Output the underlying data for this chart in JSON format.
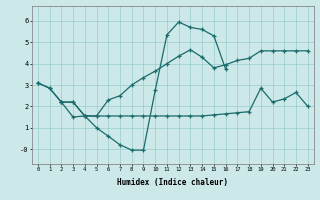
{
  "xlabel": "Humidex (Indice chaleur)",
  "bg_color": "#cce8e8",
  "grid_color": "#99cccc",
  "line_color": "#1a6b6b",
  "xlim": [
    -0.5,
    23.5
  ],
  "ylim": [
    -0.7,
    6.7
  ],
  "yticks": [
    0,
    1,
    2,
    3,
    4,
    5,
    6
  ],
  "ytick_labels": [
    "-0",
    "1",
    "2",
    "3",
    "4",
    "5",
    "6"
  ],
  "xticks": [
    0,
    1,
    2,
    3,
    4,
    5,
    6,
    7,
    8,
    9,
    10,
    11,
    12,
    13,
    14,
    15,
    16,
    17,
    18,
    19,
    20,
    21,
    22,
    23
  ],
  "line1_x": [
    0,
    1,
    2,
    3,
    4,
    5,
    6,
    7,
    8,
    9,
    10,
    11,
    12,
    13,
    14,
    15,
    16,
    17,
    18,
    19,
    20,
    21,
    22,
    23
  ],
  "line1_y": [
    3.1,
    2.85,
    2.2,
    2.2,
    1.55,
    1.55,
    2.3,
    2.5,
    3.0,
    3.35,
    3.65,
    4.0,
    4.35,
    4.65,
    4.3,
    3.8,
    3.95,
    4.15,
    4.25,
    4.6,
    4.6,
    4.6,
    4.6,
    4.6
  ],
  "line2_x": [
    0,
    1,
    2,
    3,
    4,
    5,
    6,
    7,
    8,
    9,
    10,
    11,
    12,
    13,
    14,
    15,
    16
  ],
  "line2_y": [
    3.1,
    2.85,
    2.2,
    1.5,
    1.55,
    1.0,
    0.6,
    0.2,
    -0.05,
    -0.05,
    2.75,
    5.35,
    5.95,
    5.7,
    5.6,
    5.3,
    3.75
  ],
  "line3_x": [
    2,
    3,
    4,
    5,
    6,
    7,
    8,
    9,
    10,
    11,
    12,
    13,
    14,
    15,
    16,
    17,
    18,
    19,
    20,
    21,
    22,
    23
  ],
  "line3_y": [
    2.2,
    2.2,
    1.55,
    1.55,
    1.55,
    1.55,
    1.55,
    1.55,
    1.55,
    1.55,
    1.55,
    1.55,
    1.55,
    1.6,
    1.65,
    1.7,
    1.75,
    2.85,
    2.2,
    2.35,
    2.65,
    2.0
  ]
}
